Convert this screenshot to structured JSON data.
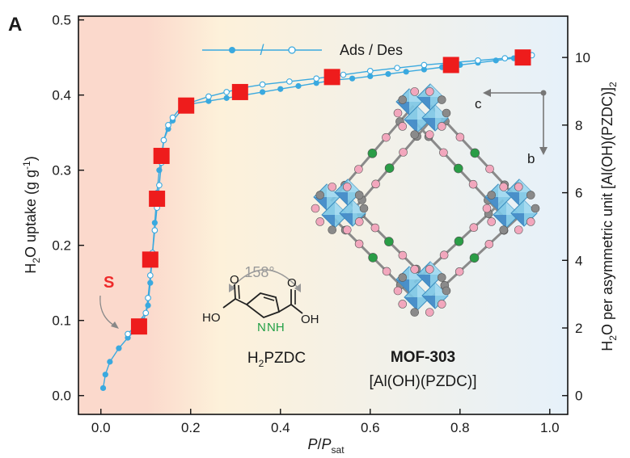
{
  "panel_letter": "A",
  "chart_data": {
    "type": "scatter",
    "xlabel": "P/P",
    "xlabel_sub": "sat",
    "ylabel_left": "H2O uptake (g g-1)",
    "ylabel_right": "H2O per asymmetric unit [Al(OH)(PZDC)]2",
    "xlim": [
      -0.05,
      1.04
    ],
    "ylim": [
      -0.025,
      0.505
    ],
    "y2lim": [
      -0.5556,
      11.222
    ],
    "x_ticks": [
      "0.0",
      "0.2",
      "0.4",
      "0.6",
      "0.8",
      "1.0"
    ],
    "x_tick_values": [
      0,
      0.2,
      0.4,
      0.6,
      0.8,
      1.0
    ],
    "y_ticks": [
      "0.0",
      "0.1",
      "0.2",
      "0.3",
      "0.4",
      "0.5"
    ],
    "y_tick_values": [
      0,
      0.1,
      0.2,
      0.3,
      0.4,
      0.5
    ],
    "y2_ticks": [
      "0",
      "2",
      "4",
      "6",
      "8",
      "10"
    ],
    "y2_tick_values": [
      0,
      2,
      4,
      6,
      8,
      10
    ],
    "legend": {
      "slash": "/",
      "text": "Ads / Des",
      "position": "top-right"
    },
    "background_gradient": [
      "#fbd9cc",
      "#fdf1da",
      "#e6f1fa"
    ],
    "series": [
      {
        "name": "Ads",
        "color": "#3aa9df",
        "marker": "filled-circle",
        "x": [
          0.005,
          0.01,
          0.02,
          0.04,
          0.06,
          0.08,
          0.095,
          0.105,
          0.11,
          0.115,
          0.12,
          0.125,
          0.13,
          0.135,
          0.14,
          0.15,
          0.16,
          0.18,
          0.2,
          0.24,
          0.28,
          0.32,
          0.36,
          0.4,
          0.44,
          0.48,
          0.52,
          0.56,
          0.6,
          0.64,
          0.68,
          0.72,
          0.76,
          0.8,
          0.84,
          0.88,
          0.92,
          0.96
        ],
        "y": [
          0.01,
          0.028,
          0.045,
          0.063,
          0.077,
          0.089,
          0.1,
          0.12,
          0.15,
          0.19,
          0.23,
          0.27,
          0.3,
          0.32,
          0.34,
          0.355,
          0.366,
          0.38,
          0.388,
          0.392,
          0.396,
          0.4,
          0.404,
          0.408,
          0.412,
          0.416,
          0.42,
          0.422,
          0.425,
          0.428,
          0.431,
          0.434,
          0.437,
          0.44,
          0.443,
          0.446,
          0.449,
          0.453
        ]
      },
      {
        "name": "Des",
        "color": "#3aa9df",
        "marker": "open-circle",
        "x": [
          0.96,
          0.9,
          0.84,
          0.78,
          0.72,
          0.66,
          0.6,
          0.54,
          0.48,
          0.42,
          0.36,
          0.32,
          0.28,
          0.24,
          0.2,
          0.18,
          0.16,
          0.15,
          0.14,
          0.135,
          0.13,
          0.125,
          0.12,
          0.115,
          0.11,
          0.105,
          0.1,
          0.08,
          0.06
        ],
        "y": [
          0.453,
          0.449,
          0.446,
          0.443,
          0.44,
          0.436,
          0.432,
          0.427,
          0.422,
          0.418,
          0.414,
          0.41,
          0.404,
          0.398,
          0.39,
          0.385,
          0.37,
          0.36,
          0.34,
          0.31,
          0.28,
          0.25,
          0.22,
          0.19,
          0.16,
          0.13,
          0.11,
          0.095,
          0.082
        ]
      },
      {
        "name": "squares",
        "color": "#ee1c1c",
        "marker": "square",
        "x": [
          0.085,
          0.11,
          0.125,
          0.135,
          0.19,
          0.31,
          0.515,
          0.78,
          0.94
        ],
        "y": [
          0.092,
          0.181,
          0.262,
          0.319,
          0.386,
          0.404,
          0.424,
          0.44,
          0.45
        ]
      }
    ]
  },
  "annotations": {
    "s_label": "S",
    "angle_label": "158°",
    "linker_name": "H2PZDC",
    "mof_name": "MOF-303",
    "mof_formula": "[Al(OH)(PZDC)]",
    "axis_c": "c",
    "axis_b": "b",
    "atom_ho": "HO",
    "atom_oh": "OH",
    "atom_n": "N",
    "atom_nh": "NH",
    "atom_o1": "O",
    "atom_o2": "O"
  }
}
